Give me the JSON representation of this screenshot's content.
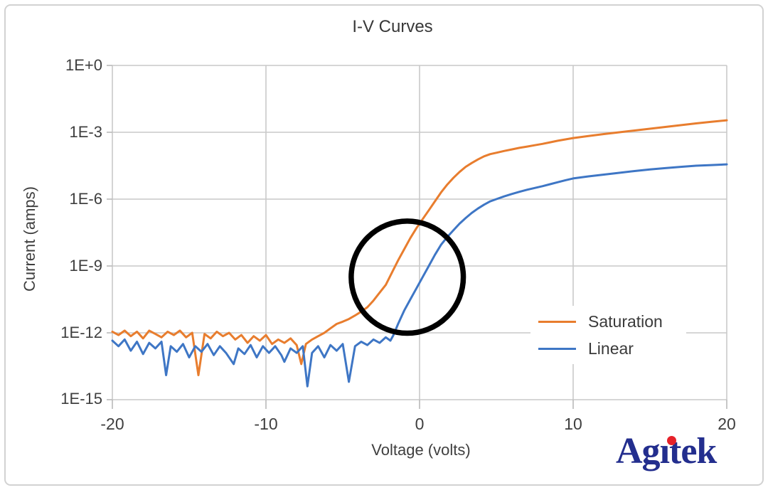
{
  "chart_data": {
    "type": "line",
    "title": "I-V Curves",
    "xlabel": "Voltage (volts)",
    "ylabel": "Current (amps)",
    "grid": true,
    "x_axis": {
      "min": -20,
      "max": 20,
      "tick_values": [
        -20,
        -10,
        0,
        10,
        20
      ],
      "tick_labels": [
        "-20",
        "-10",
        "0",
        "10",
        "20"
      ]
    },
    "y_axis": {
      "scale": "log",
      "max_exp": 0,
      "min_exp": -15,
      "tick_exponents": [
        0,
        -3,
        -6,
        -9,
        -12,
        -15
      ],
      "tick_labels": [
        "1E+0",
        "1E-3",
        "1E-6",
        "1E-9",
        "1E-12",
        "1E-15"
      ]
    },
    "legend": {
      "position": "inside-right"
    },
    "colors": {
      "grid": "#c9c9c9",
      "axis": "#b9b9b9",
      "text": "#3f3f3f"
    },
    "series": [
      {
        "name": "Saturation",
        "color": "#E87D2E",
        "points_v_log10amps": [
          [
            -20,
            -11.95
          ],
          [
            -19.6,
            -12.1
          ],
          [
            -19.2,
            -11.9
          ],
          [
            -18.8,
            -12.15
          ],
          [
            -18.4,
            -11.95
          ],
          [
            -18,
            -12.25
          ],
          [
            -17.6,
            -11.9
          ],
          [
            -17.2,
            -12.05
          ],
          [
            -16.8,
            -12.2
          ],
          [
            -16.4,
            -11.95
          ],
          [
            -16,
            -12.1
          ],
          [
            -15.6,
            -11.9
          ],
          [
            -15.2,
            -12.2
          ],
          [
            -14.8,
            -12
          ],
          [
            -14.4,
            -13.9
          ],
          [
            -14,
            -12.05
          ],
          [
            -13.6,
            -12.25
          ],
          [
            -13.2,
            -11.95
          ],
          [
            -12.8,
            -12.15
          ],
          [
            -12.4,
            -12
          ],
          [
            -12,
            -12.3
          ],
          [
            -11.6,
            -12.1
          ],
          [
            -11.2,
            -12.45
          ],
          [
            -10.8,
            -12.15
          ],
          [
            -10.4,
            -12.35
          ],
          [
            -10,
            -12.1
          ],
          [
            -9.6,
            -12.5
          ],
          [
            -9.2,
            -12.3
          ],
          [
            -8.8,
            -12.45
          ],
          [
            -8.4,
            -12.25
          ],
          [
            -8,
            -12.55
          ],
          [
            -7.7,
            -13.4
          ],
          [
            -7.4,
            -12.5
          ],
          [
            -7,
            -12.3
          ],
          [
            -6.6,
            -12.15
          ],
          [
            -6.2,
            -12
          ],
          [
            -5.8,
            -11.8
          ],
          [
            -5.4,
            -11.6
          ],
          [
            -5,
            -11.5
          ],
          [
            -4.6,
            -11.38
          ],
          [
            -4.2,
            -11.22
          ],
          [
            -3.8,
            -11.05
          ],
          [
            -3.4,
            -10.85
          ],
          [
            -3,
            -10.55
          ],
          [
            -2.6,
            -10.2
          ],
          [
            -2.2,
            -9.85
          ],
          [
            -1.8,
            -9.3
          ],
          [
            -1.4,
            -8.75
          ],
          [
            -1,
            -8.25
          ],
          [
            -0.6,
            -7.75
          ],
          [
            -0.2,
            -7.3
          ],
          [
            0.2,
            -6.9
          ],
          [
            0.6,
            -6.5
          ],
          [
            1,
            -6.1
          ],
          [
            1.4,
            -5.7
          ],
          [
            1.8,
            -5.35
          ],
          [
            2.2,
            -5.05
          ],
          [
            2.6,
            -4.78
          ],
          [
            3,
            -4.55
          ],
          [
            3.4,
            -4.38
          ],
          [
            3.8,
            -4.22
          ],
          [
            4.2,
            -4.08
          ],
          [
            4.6,
            -3.98
          ],
          [
            5,
            -3.92
          ],
          [
            5.5,
            -3.84
          ],
          [
            6,
            -3.77
          ],
          [
            6.5,
            -3.7
          ],
          [
            7,
            -3.64
          ],
          [
            7.5,
            -3.58
          ],
          [
            8,
            -3.52
          ],
          [
            8.5,
            -3.45
          ],
          [
            9,
            -3.38
          ],
          [
            9.5,
            -3.32
          ],
          [
            10,
            -3.26
          ],
          [
            11,
            -3.17
          ],
          [
            12,
            -3.08
          ],
          [
            13,
            -3
          ],
          [
            14,
            -2.92
          ],
          [
            15,
            -2.84
          ],
          [
            16,
            -2.76
          ],
          [
            17,
            -2.68
          ],
          [
            18,
            -2.6
          ],
          [
            19,
            -2.53
          ],
          [
            20,
            -2.46
          ]
        ]
      },
      {
        "name": "Linear",
        "color": "#3E76C5",
        "points_v_log10amps": [
          [
            -20,
            -12.35
          ],
          [
            -19.6,
            -12.6
          ],
          [
            -19.2,
            -12.3
          ],
          [
            -18.8,
            -12.8
          ],
          [
            -18.4,
            -12.4
          ],
          [
            -18,
            -12.95
          ],
          [
            -17.6,
            -12.45
          ],
          [
            -17.2,
            -12.7
          ],
          [
            -16.8,
            -12.4
          ],
          [
            -16.5,
            -13.9
          ],
          [
            -16.2,
            -12.6
          ],
          [
            -15.8,
            -12.85
          ],
          [
            -15.4,
            -12.5
          ],
          [
            -15,
            -13.1
          ],
          [
            -14.6,
            -12.6
          ],
          [
            -14.2,
            -12.85
          ],
          [
            -13.8,
            -12.5
          ],
          [
            -13.4,
            -13
          ],
          [
            -13,
            -12.6
          ],
          [
            -12.6,
            -12.9
          ],
          [
            -12.1,
            -13.4
          ],
          [
            -11.8,
            -12.7
          ],
          [
            -11.4,
            -12.95
          ],
          [
            -11,
            -12.55
          ],
          [
            -10.6,
            -13.1
          ],
          [
            -10.2,
            -12.6
          ],
          [
            -9.8,
            -12.9
          ],
          [
            -9.4,
            -12.6
          ],
          [
            -9,
            -13
          ],
          [
            -8.8,
            -13.3
          ],
          [
            -8.4,
            -12.7
          ],
          [
            -8,
            -12.9
          ],
          [
            -7.6,
            -12.6
          ],
          [
            -7.3,
            -14.4
          ],
          [
            -7,
            -12.9
          ],
          [
            -6.6,
            -12.6
          ],
          [
            -6.2,
            -13.1
          ],
          [
            -5.8,
            -12.55
          ],
          [
            -5.4,
            -12.8
          ],
          [
            -5,
            -12.5
          ],
          [
            -4.6,
            -14.2
          ],
          [
            -4.2,
            -12.6
          ],
          [
            -3.8,
            -12.4
          ],
          [
            -3.4,
            -12.55
          ],
          [
            -3,
            -12.3
          ],
          [
            -2.6,
            -12.45
          ],
          [
            -2.2,
            -12.2
          ],
          [
            -1.9,
            -12.35
          ],
          [
            -1.7,
            -12.1
          ],
          [
            -1.4,
            -11.6
          ],
          [
            -1,
            -11
          ],
          [
            -0.6,
            -10.5
          ],
          [
            -0.2,
            -10
          ],
          [
            0.2,
            -9.5
          ],
          [
            0.6,
            -9
          ],
          [
            1,
            -8.5
          ],
          [
            1.4,
            -8.05
          ],
          [
            1.8,
            -7.7
          ],
          [
            2.2,
            -7.4
          ],
          [
            2.6,
            -7.1
          ],
          [
            3,
            -6.85
          ],
          [
            3.4,
            -6.62
          ],
          [
            3.8,
            -6.42
          ],
          [
            4.2,
            -6.25
          ],
          [
            4.6,
            -6.1
          ],
          [
            5,
            -6
          ],
          [
            5.5,
            -5.88
          ],
          [
            6,
            -5.77
          ],
          [
            6.5,
            -5.67
          ],
          [
            7,
            -5.58
          ],
          [
            7.5,
            -5.5
          ],
          [
            8,
            -5.42
          ],
          [
            8.5,
            -5.33
          ],
          [
            9,
            -5.24
          ],
          [
            9.5,
            -5.15
          ],
          [
            10,
            -5.07
          ],
          [
            11,
            -4.98
          ],
          [
            12,
            -4.9
          ],
          [
            13,
            -4.82
          ],
          [
            14,
            -4.74
          ],
          [
            15,
            -4.67
          ],
          [
            16,
            -4.61
          ],
          [
            17,
            -4.55
          ],
          [
            18,
            -4.5
          ],
          [
            19,
            -4.47
          ],
          [
            20,
            -4.44
          ]
        ]
      }
    ],
    "annotation": {
      "shape": "circle",
      "color": "#000000",
      "center_volts": -0.8,
      "center_log10amps": -9.5,
      "radius_volts": 3.65,
      "stroke_px": 7.5
    }
  },
  "branding": {
    "logo_text": "Agitek",
    "logo_part1": "Ag",
    "logo_stem": "ı",
    "logo_part2": "tek",
    "logo_color": "#232E8E",
    "logo_dot_color": "#E62129"
  }
}
